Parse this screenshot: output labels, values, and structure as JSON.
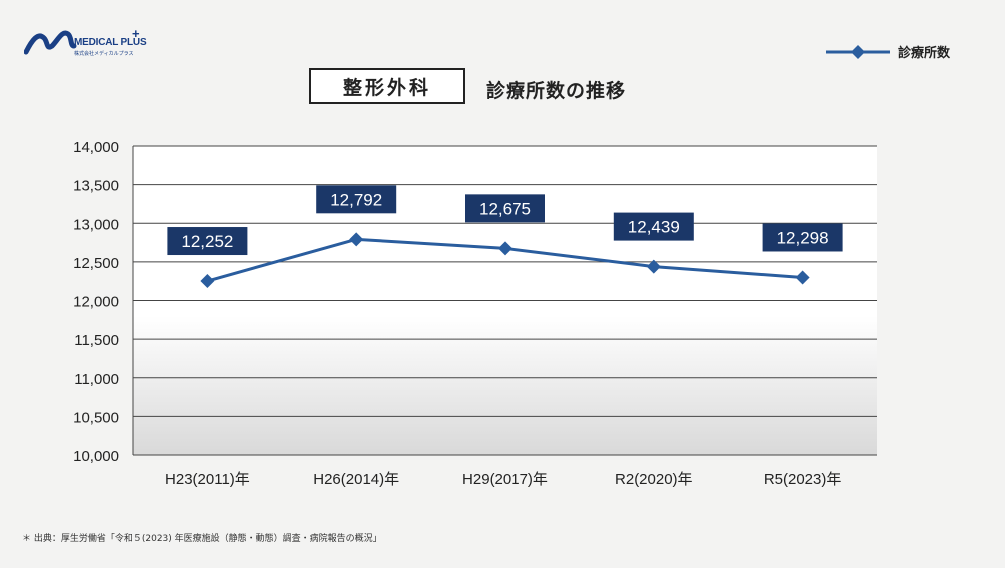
{
  "brand": {
    "name": "MEDICAL PLUS",
    "plus": "+",
    "subtitle": "株式会社メディカルプラス"
  },
  "header": {
    "title_boxed": "整形外科",
    "title_rest": "診療所数の推移"
  },
  "legend": {
    "label": "診療所数"
  },
  "colors": {
    "line": "#2a5d9e",
    "label_bg": "#1b3768",
    "logo": "#1a3f85"
  },
  "chart_data": {
    "type": "line",
    "categories": [
      "H23(2011)年",
      "H26(2014)年",
      "H29(2017)年",
      "R2(2020)年",
      "R5(2023)年"
    ],
    "series": [
      {
        "name": "診療所数",
        "values": [
          12252,
          12792,
          12675,
          12439,
          12298
        ]
      }
    ],
    "data_labels": [
      "12,252",
      "12,792",
      "12,675",
      "12,439",
      "12,298"
    ],
    "ylim": [
      10000,
      14000
    ],
    "yticks": [
      10000,
      10500,
      11000,
      11500,
      12000,
      12500,
      13000,
      13500,
      14000
    ],
    "ytick_labels": [
      "10,000",
      "10,500",
      "11,000",
      "11,500",
      "12,000",
      "12,500",
      "13,000",
      "13,500",
      "14,000"
    ],
    "grid": true,
    "marker": "diamond",
    "legend_position": "top-right"
  },
  "footnote": "＊ 出典：厚生労働省「令和５(2023) 年医療施設（静態・動態）調査・病院報告の概況」"
}
